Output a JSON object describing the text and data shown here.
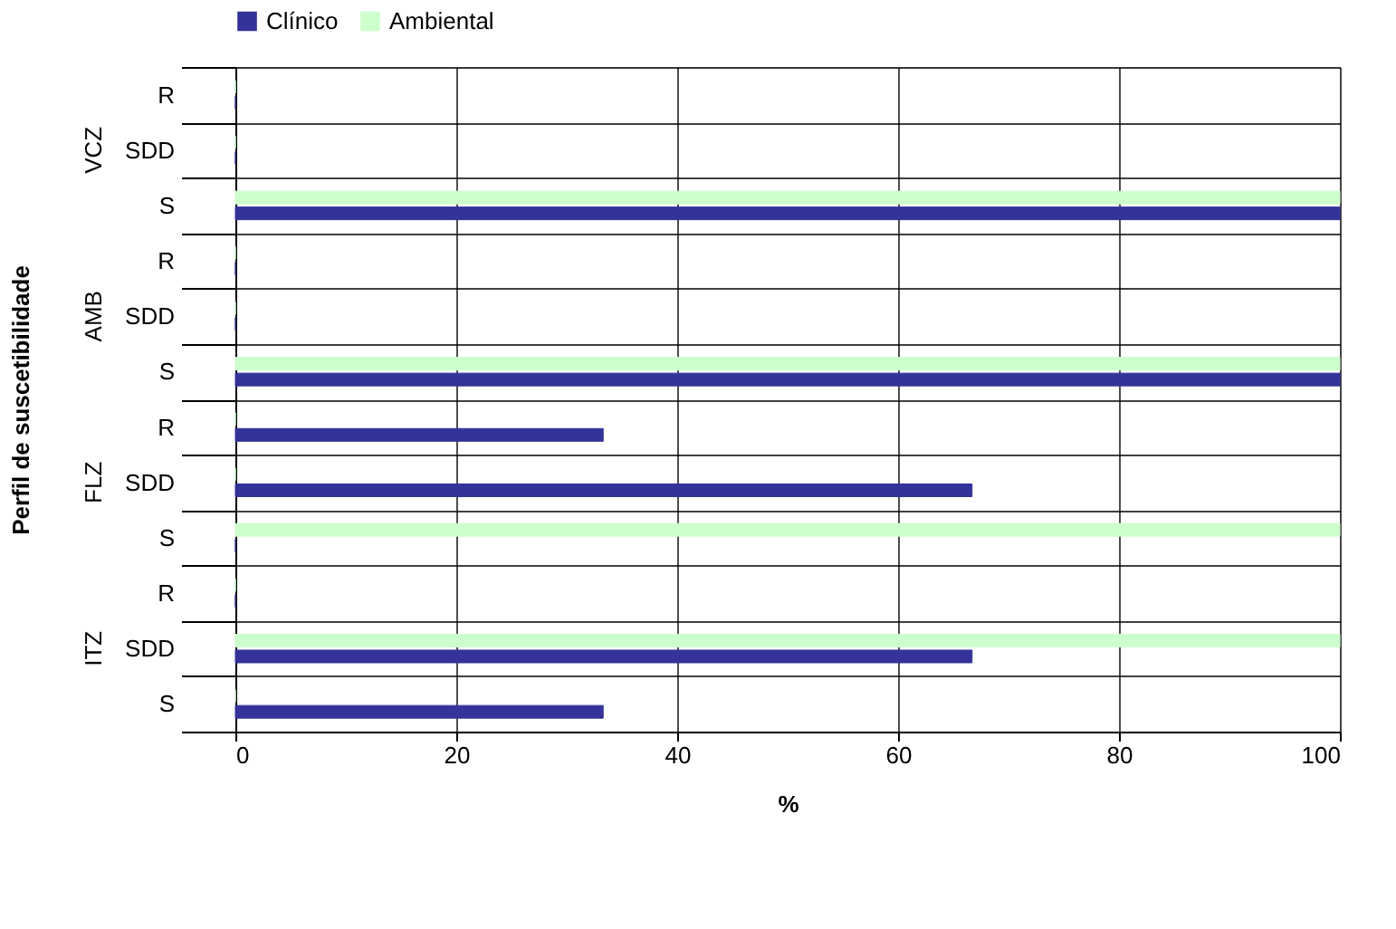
{
  "chart_data": {
    "type": "bar",
    "orientation": "horizontal",
    "categories": [
      "R",
      "SDD",
      "S",
      "R",
      "SDD",
      "S",
      "R",
      "SDD",
      "S",
      "R",
      "SDD",
      "S"
    ],
    "series": [
      {
        "name": "Clínico",
        "color": "#333399",
        "values": [
          0,
          0,
          100,
          0,
          0,
          100,
          33.3,
          66.7,
          0,
          0,
          66.7,
          33.3
        ]
      },
      {
        "name": "Ambiental",
        "color": "#ccffcc",
        "values": [
          0,
          0,
          100,
          0,
          0,
          100,
          0,
          0,
          100,
          0,
          100,
          0
        ]
      }
    ],
    "annotations": [
      "VCZ",
      "AMB",
      "FLZ",
      "ITZ"
    ],
    "xlim": [
      0,
      100
    ],
    "xticks": [
      0,
      20,
      40,
      60,
      80,
      100
    ],
    "xlabel": "%",
    "ylabel": "Perfil de suscetibilidade",
    "grid": "x",
    "legend": "top"
  }
}
